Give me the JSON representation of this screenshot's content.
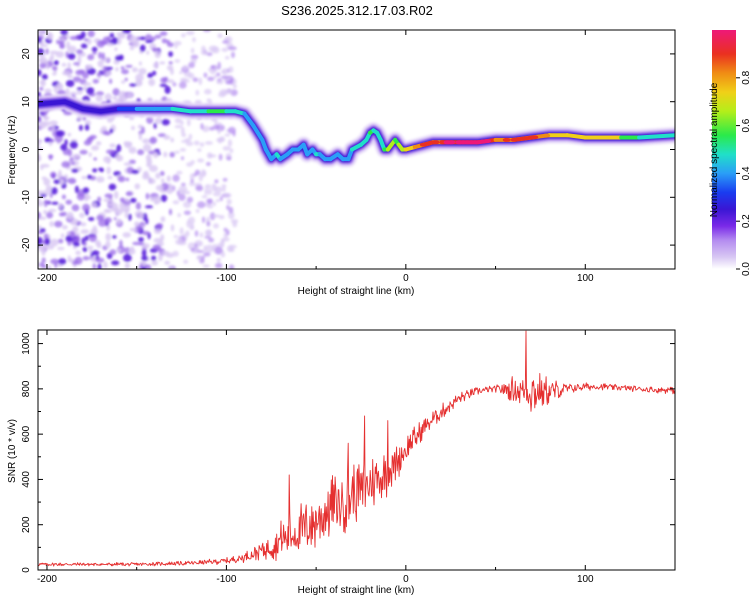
{
  "figure_title": "S236.2025.312.17.03.R02",
  "colors": {
    "snr_line": "#e53030",
    "axis": "#000000",
    "scatter_purple": "#7a2ae8",
    "colormap": [
      "#ffffff",
      "#d8c7f3",
      "#b48cf0",
      "#7a2ae8",
      "#3a16d4",
      "#1a3cf0",
      "#2a9ef7",
      "#20e0c8",
      "#2aea4a",
      "#b4ee1a",
      "#f0d018",
      "#f08c14",
      "#ea3020",
      "#ee1878"
    ]
  },
  "colorbar": {
    "label": "Normalized spectral amplitude",
    "ticks": [
      "0.0",
      "0.2",
      "0.4",
      "0.6",
      "0.8"
    ]
  },
  "chart_data": [
    {
      "type": "heatmap",
      "title": "S236.2025.312.17.03.R02",
      "xlabel": "Height of straight line (km)",
      "ylabel": "Frequency (Hz)",
      "xlim": [
        -205,
        150
      ],
      "ylim": [
        -25,
        25
      ],
      "xticks": [
        -200,
        -100,
        0,
        100
      ],
      "yticks": [
        -20,
        -10,
        0,
        10,
        20
      ],
      "ridge": {
        "x": [
          -205,
          -190,
          -180,
          -170,
          -160,
          -150,
          -140,
          -130,
          -120,
          -110,
          -100,
          -95,
          -90,
          -85,
          -80,
          -78,
          -75,
          -72,
          -70,
          -66,
          -63,
          -60,
          -57,
          -55,
          -52,
          -50,
          -48,
          -45,
          -42,
          -38,
          -35,
          -32,
          -30,
          -25,
          -22,
          -20,
          -18,
          -16,
          -14,
          -12,
          -10,
          -8,
          -6,
          -4,
          -2,
          0,
          5,
          10,
          15,
          20,
          25,
          30,
          40,
          50,
          60,
          70,
          80,
          90,
          100,
          110,
          120,
          130,
          150
        ],
        "y": [
          9.5,
          10,
          8.5,
          8,
          8.5,
          8.5,
          8.5,
          8.5,
          8,
          8,
          8,
          8,
          7.5,
          5,
          2,
          0,
          -2,
          -1,
          -2,
          -1,
          0,
          0,
          1,
          -1,
          0,
          -1,
          -1,
          -2,
          -2,
          -1,
          -2,
          -2,
          0,
          1,
          2,
          3.5,
          4,
          3.5,
          2,
          0,
          0,
          1,
          2,
          1,
          0,
          0,
          0.5,
          1,
          1.5,
          1.5,
          1.5,
          1.5,
          1.5,
          2,
          2,
          2.5,
          3,
          3,
          2.5,
          2.5,
          2.5,
          2.5,
          3
        ],
        "amplitude": [
          0.3,
          0.3,
          0.3,
          0.3,
          0.35,
          0.4,
          0.45,
          0.5,
          0.55,
          0.6,
          0.6,
          0.55,
          0.5,
          0.45,
          0.45,
          0.4,
          0.45,
          0.5,
          0.5,
          0.45,
          0.45,
          0.45,
          0.45,
          0.45,
          0.45,
          0.5,
          0.5,
          0.4,
          0.45,
          0.45,
          0.45,
          0.45,
          0.5,
          0.5,
          0.55,
          0.6,
          0.6,
          0.55,
          0.5,
          0.6,
          0.7,
          0.75,
          0.6,
          0.65,
          0.7,
          0.75,
          0.8,
          0.85,
          0.85,
          0.85,
          0.95,
          0.95,
          0.95,
          0.9,
          0.85,
          0.85,
          0.8,
          0.75,
          0.8,
          0.8,
          0.7,
          0.6,
          0.55
        ]
      },
      "noise_region_x": [
        -205,
        -95
      ],
      "noise_region_y": [
        -25,
        25
      ]
    },
    {
      "type": "line",
      "title": "",
      "xlabel": "Height of straight line (km)",
      "ylabel": "SNR (10 * v/v)",
      "xlim": [
        -205,
        150
      ],
      "ylim": [
        0,
        1060
      ],
      "xticks": [
        -200,
        -100,
        0,
        100
      ],
      "yticks": [
        0,
        200,
        400,
        600,
        800,
        1000
      ],
      "series": [
        {
          "name": "SNR",
          "envelope_x": [
            -205,
            -180,
            -150,
            -120,
            -100,
            -90,
            -80,
            -70,
            -60,
            -50,
            -40,
            -30,
            -20,
            -10,
            0,
            10,
            20,
            30,
            40,
            50,
            60,
            70,
            80,
            90,
            100,
            110,
            120,
            130,
            140,
            150
          ],
          "envelope_mean": [
            25,
            25,
            25,
            30,
            40,
            55,
            90,
            130,
            170,
            220,
            280,
            330,
            380,
            430,
            530,
            630,
            700,
            760,
            790,
            800,
            800,
            790,
            790,
            800,
            810,
            810,
            805,
            800,
            795,
            795
          ],
          "envelope_spread": [
            8,
            8,
            8,
            10,
            15,
            22,
            45,
            90,
            120,
            140,
            150,
            150,
            130,
            110,
            70,
            45,
            35,
            25,
            18,
            15,
            60,
            110,
            60,
            25,
            18,
            15,
            14,
            14,
            14,
            18
          ],
          "peak_markers": [
            {
              "x": -65,
              "y": 420
            },
            {
              "x": -32,
              "y": 560
            },
            {
              "x": -23,
              "y": 680
            },
            {
              "x": -10,
              "y": 660
            },
            {
              "x": 67,
              "y": 1055
            }
          ]
        }
      ]
    }
  ]
}
